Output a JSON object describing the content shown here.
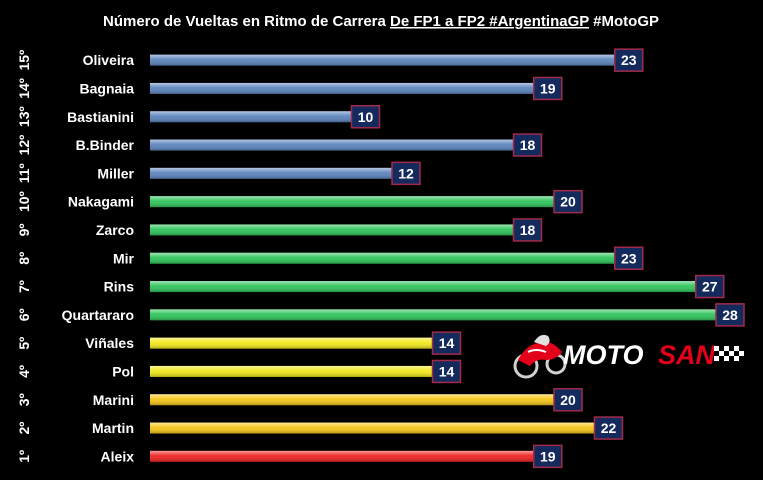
{
  "chart_data": {
    "type": "bar",
    "orientation": "horizontal",
    "title_parts": [
      {
        "text": "Número de Vueltas en Ritmo de Carrera ",
        "underline": false
      },
      {
        "text": "De FP1 a FP2 #ArgentinaGP",
        "underline": true
      },
      {
        "text": " #MotoGP",
        "underline": false
      }
    ],
    "xlim": [
      0,
      28
    ],
    "grid": false,
    "legend": "none",
    "rows": [
      {
        "rank": "15º",
        "rider": "Oliveira",
        "value": 23,
        "color": "#5b84bd"
      },
      {
        "rank": "14º",
        "rider": "Bagnaia",
        "value": 19,
        "color": "#5b84bd"
      },
      {
        "rank": "13º",
        "rider": "Bastianini",
        "value": 10,
        "color": "#5b84bd"
      },
      {
        "rank": "12º",
        "rider": "B.Binder",
        "value": 18,
        "color": "#5b84bd"
      },
      {
        "rank": "11º",
        "rider": "Miller",
        "value": 12,
        "color": "#5b84bd"
      },
      {
        "rank": "10º",
        "rider": "Nakagami",
        "value": 20,
        "color": "#2ec45a"
      },
      {
        "rank": "9º",
        "rider": "Zarco",
        "value": 18,
        "color": "#2ec45a"
      },
      {
        "rank": "8º",
        "rider": "Mir",
        "value": 23,
        "color": "#2ec45a"
      },
      {
        "rank": "7º",
        "rider": "Rins",
        "value": 27,
        "color": "#2ec45a"
      },
      {
        "rank": "6º",
        "rider": "Quartararo",
        "value": 28,
        "color": "#2ec45a"
      },
      {
        "rank": "5º",
        "rider": "Viñales",
        "value": 14,
        "color": "#f2e81a"
      },
      {
        "rank": "4º",
        "rider": "Pol",
        "value": 14,
        "color": "#f2e81a"
      },
      {
        "rank": "3º",
        "rider": "Marini",
        "value": 20,
        "color": "#f5c518"
      },
      {
        "rank": "2º",
        "rider": "Martin",
        "value": 22,
        "color": "#f5c518"
      },
      {
        "rank": "1º",
        "rider": "Aleix",
        "value": 19,
        "color": "#ee2222"
      }
    ],
    "value_label_bg": "#152a5c",
    "value_label_border": "#a12a4a"
  },
  "watermark": {
    "brand_left": "MOTO",
    "brand_right": "SAN",
    "icon": "motorcycle-rider-icon",
    "colors": {
      "left": "#ffffff",
      "right": "#e3001b"
    }
  }
}
